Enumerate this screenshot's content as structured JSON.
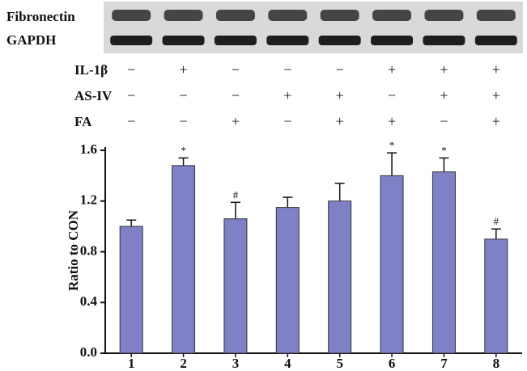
{
  "blot": {
    "labels": [
      "Fibronectin",
      "GAPDH"
    ]
  },
  "treatments": [
    {
      "name": "IL-1β",
      "signs": [
        "−",
        "+",
        "−",
        "−",
        "−",
        "+",
        "+",
        "+"
      ]
    },
    {
      "name": "AS-IV",
      "signs": [
        "−",
        "−",
        "−",
        "+",
        "+",
        "−",
        "+",
        "+"
      ]
    },
    {
      "name": "FA",
      "signs": [
        "−",
        "−",
        "+",
        "−",
        "+",
        "+",
        "−",
        "+"
      ]
    }
  ],
  "chart_data": {
    "type": "bar",
    "y_label": "Ratio to CON",
    "categories": [
      "1",
      "2",
      "3",
      "4",
      "5",
      "6",
      "7",
      "8"
    ],
    "values": [
      1.0,
      1.48,
      1.06,
      1.15,
      1.2,
      1.4,
      1.43,
      0.9
    ],
    "errors": [
      0.05,
      0.06,
      0.13,
      0.08,
      0.14,
      0.18,
      0.11,
      0.08
    ],
    "annotations": [
      null,
      "*",
      "#",
      null,
      null,
      "*",
      "*",
      "#"
    ],
    "color": "#7f80c6",
    "ylim": [
      0,
      1.6
    ],
    "yticks": [
      {
        "value": 0,
        "label": "0.0"
      },
      0.4,
      0.8,
      1.2,
      1.6
    ]
  }
}
